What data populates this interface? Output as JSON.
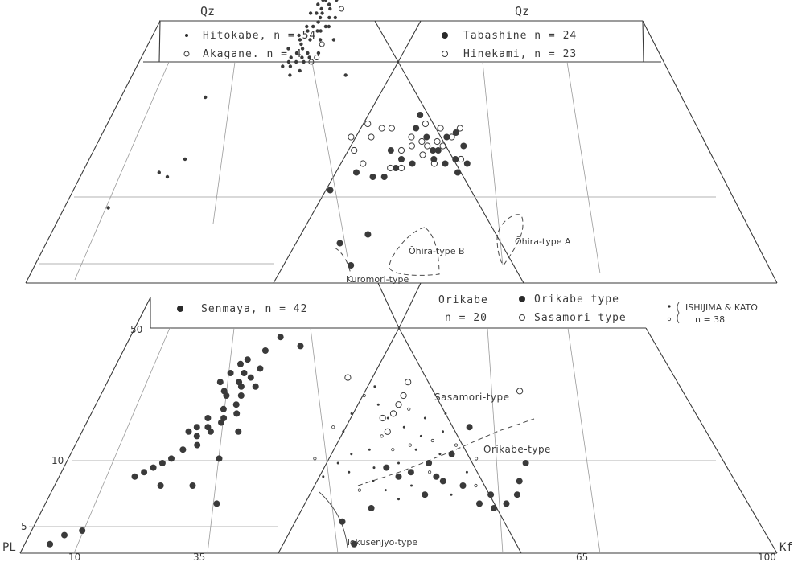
{
  "figure": {
    "apex_labels": {
      "qz_left": "Qz",
      "qz_right": "Qz"
    },
    "corner_labels": {
      "pl": "PL",
      "kf": "Kf"
    },
    "axis_ticks": {
      "bottom": [
        "10",
        "35",
        "65",
        "100"
      ],
      "left": [
        "5",
        "10",
        "50"
      ]
    },
    "legends": {
      "top_left": {
        "row1": "Hitokabe,  n = 54",
        "row2": "Akagane.  n = 4"
      },
      "top_right": {
        "row1": "Tabashine  n = 24",
        "row2": "Hinekami, n = 23"
      },
      "bottom_left": {
        "row1": "Senmaya,  n = 42"
      },
      "bottom_right": {
        "group": "Orikabe",
        "n": "n = 20",
        "filled": "Orikabe type",
        "open": "Sasamori type"
      },
      "ishijima": {
        "title": "ISHIJIMA & KATO",
        "n": "n = 38"
      }
    },
    "annotations": {
      "ohira_a": "Ōhira-type A",
      "ohira_b": "Ōhira-type B",
      "kuromori": "Kuromori-type",
      "tokusenjyo": "Tokusenjyo-type",
      "sasamori_type": "Sasamori-type",
      "orikabe_type": "Orikabe-type"
    },
    "colors": {
      "ink": "#3a3a3a",
      "guide": "#9a9a9a"
    }
  },
  "chart_data": [
    {
      "panel": "upper-left",
      "type": "scatter",
      "series": [
        {
          "name": "Hitokabe, n = 54",
          "marker": "filled-small",
          "points": [
            [
              22,
              47
            ],
            [
              19,
              56
            ],
            [
              20,
              58
            ],
            [
              21,
              61
            ],
            [
              22,
              62
            ],
            [
              20,
              55
            ],
            [
              23,
              59
            ],
            [
              24,
              63
            ],
            [
              21,
              52
            ],
            [
              23,
              55
            ],
            [
              25,
              57
            ],
            [
              26,
              60
            ],
            [
              24,
              50
            ],
            [
              22,
              50
            ],
            [
              19,
              49
            ],
            [
              20,
              51
            ],
            [
              18,
              53
            ],
            [
              26,
              64
            ],
            [
              27,
              66
            ],
            [
              24,
              52
            ],
            [
              25,
              66
            ],
            [
              27,
              58
            ],
            [
              23,
              68
            ],
            [
              20,
              70
            ],
            [
              21,
              57
            ],
            [
              19,
              61
            ],
            [
              22,
              66
            ],
            [
              30,
              55
            ],
            [
              36,
              47
            ],
            [
              5,
              42
            ],
            [
              7,
              25
            ],
            [
              9,
              24
            ],
            [
              10,
              28
            ],
            [
              3,
              17
            ],
            [
              23,
              61
            ],
            [
              24,
              57
            ],
            [
              25,
              62
            ],
            [
              26,
              55
            ],
            [
              22,
              53
            ],
            [
              21,
              49
            ],
            [
              24,
              48
            ],
            [
              23,
              60
            ],
            [
              22,
              64
            ],
            [
              20,
              63
            ],
            [
              25,
              51
            ],
            [
              28,
              60
            ],
            [
              21,
              54
            ],
            [
              22,
              58
            ],
            [
              20,
              50
            ],
            [
              27,
              52
            ],
            [
              24,
              65
            ],
            [
              23,
              51
            ],
            [
              26,
              58
            ],
            [
              21,
              64
            ]
          ]
        },
        {
          "name": "Akagane, n = 4",
          "marker": "open-small",
          "points": [
            [
              29,
              62
            ],
            [
              27,
              54
            ],
            [
              27,
              51
            ],
            [
              26,
              50
            ]
          ]
        }
      ]
    },
    {
      "panel": "upper-right",
      "type": "scatter",
      "series": [
        {
          "name": "Tabashine n = 24",
          "marker": "filled",
          "points": [
            [
              45,
              24
            ],
            [
              42,
              25
            ],
            [
              38,
              21
            ],
            [
              47,
              24
            ],
            [
              49,
              26
            ],
            [
              50,
              28
            ],
            [
              52,
              27
            ],
            [
              55,
              33
            ],
            [
              57,
              30
            ],
            [
              59,
              33
            ],
            [
              56,
              30
            ],
            [
              60,
              28
            ],
            [
              62,
              31
            ],
            [
              60,
              25
            ],
            [
              56,
              28
            ],
            [
              58,
              27
            ],
            [
              62,
              27
            ],
            [
              53,
              35
            ],
            [
              54,
              38
            ],
            [
              61,
              34
            ],
            [
              43,
              4
            ],
            [
              41,
              9
            ],
            [
              45,
              11
            ],
            [
              48,
              30
            ]
          ]
        },
        {
          "name": "Hinekami, n = 23",
          "marker": "open",
          "points": [
            [
              40,
              33
            ],
            [
              41,
              30
            ],
            [
              43,
              36
            ],
            [
              44,
              33
            ],
            [
              46,
              35
            ],
            [
              48,
              35
            ],
            [
              50,
              30
            ],
            [
              52,
              33
            ],
            [
              55,
              36
            ],
            [
              57,
              32
            ],
            [
              60,
              33
            ],
            [
              54,
              29
            ],
            [
              58,
              31
            ],
            [
              62,
              35
            ],
            [
              56,
              27
            ],
            [
              52,
              31
            ],
            [
              48,
              26
            ],
            [
              54,
              32
            ],
            [
              61,
              28
            ],
            [
              43,
              27
            ],
            [
              55,
              31
            ],
            [
              58,
              35
            ],
            [
              50,
              26
            ]
          ]
        }
      ]
    },
    {
      "panel": "lower-left",
      "type": "scatter",
      "series": [
        {
          "name": "Senmaya, n = 42",
          "marker": "filled",
          "points": [
            [
              12,
              38
            ],
            [
              13,
              40
            ],
            [
              14,
              42
            ],
            [
              15,
              43
            ],
            [
              14,
              36
            ],
            [
              16,
              38
            ],
            [
              15,
              35
            ],
            [
              17,
              37
            ],
            [
              18,
              39
            ],
            [
              19,
              41
            ],
            [
              18,
              33
            ],
            [
              16,
              32
            ],
            [
              14,
              30
            ],
            [
              13,
              28
            ],
            [
              12,
              27
            ],
            [
              14,
              26
            ],
            [
              16,
              27
            ],
            [
              17,
              29
            ],
            [
              15,
              24
            ],
            [
              13,
              23
            ],
            [
              12,
              21
            ],
            [
              11,
              20
            ],
            [
              10,
              19
            ],
            [
              9,
              18
            ],
            [
              8,
              17
            ],
            [
              17,
              30
            ],
            [
              18,
              35
            ],
            [
              20,
              37
            ],
            [
              19,
              31
            ],
            [
              18,
              45
            ],
            [
              20,
              48
            ],
            [
              26,
              46
            ],
            [
              21,
              27
            ],
            [
              20,
              21
            ],
            [
              13,
              15
            ],
            [
              23,
              11
            ],
            [
              18,
              15
            ],
            [
              3,
              2
            ],
            [
              4,
              4
            ],
            [
              6,
              5
            ],
            [
              16,
              40
            ],
            [
              15,
              28
            ]
          ]
        }
      ]
    },
    {
      "panel": "lower-right",
      "type": "scatter",
      "series": [
        {
          "name": "Orikabe type",
          "marker": "filled",
          "points": [
            [
              48,
              19
            ],
            [
              50,
              17
            ],
            [
              52,
              18
            ],
            [
              55,
              20
            ],
            [
              57,
              16
            ],
            [
              59,
              22
            ],
            [
              60,
              15
            ],
            [
              62,
              11
            ],
            [
              64,
              13
            ],
            [
              64,
              10
            ],
            [
              66,
              11
            ],
            [
              68,
              13
            ],
            [
              71,
              20
            ],
            [
              69,
              16
            ],
            [
              56,
              17
            ],
            [
              54,
              13
            ],
            [
              63,
              28
            ],
            [
              44,
              2
            ],
            [
              42,
              7
            ],
            [
              46,
              10
            ]
          ]
        },
        {
          "name": "Sasamori type",
          "marker": "open",
          "points": [
            [
              39,
              39
            ],
            [
              50,
              33
            ],
            [
              51,
              35
            ],
            [
              52,
              38
            ],
            [
              49,
              31
            ],
            [
              48,
              27
            ],
            [
              47,
              30
            ],
            [
              75,
              36
            ]
          ]
        },
        {
          "name": "ISHIJIMA & KATO, n = 38",
          "marker": "tiny",
          "points": [
            [
              38,
              28
            ],
            [
              40,
              27
            ],
            [
              42,
              22
            ],
            [
              43,
              35
            ],
            [
              45,
              37
            ],
            [
              46,
              33
            ],
            [
              47,
              26
            ],
            [
              48,
              30
            ],
            [
              51,
              28
            ],
            [
              52,
              32
            ],
            [
              53,
              23
            ],
            [
              54,
              26
            ],
            [
              56,
              25
            ],
            [
              58,
              27
            ],
            [
              57,
              22
            ],
            [
              60,
              24
            ],
            [
              50,
              20
            ],
            [
              46,
              16
            ],
            [
              44,
              14
            ],
            [
              48,
              14
            ],
            [
              52,
              15
            ],
            [
              55,
              18
            ],
            [
              58,
              13
            ],
            [
              61,
              18
            ],
            [
              63,
              21
            ],
            [
              40,
              20
            ],
            [
              42,
              18
            ],
            [
              36,
              21
            ],
            [
              38,
              17
            ],
            [
              45,
              23
            ],
            [
              49,
              23
            ],
            [
              55,
              30
            ],
            [
              59,
              31
            ],
            [
              62,
              15
            ],
            [
              50,
              12
            ],
            [
              46,
              19
            ],
            [
              52,
              24
            ],
            [
              41,
              31
            ]
          ]
        }
      ]
    }
  ]
}
